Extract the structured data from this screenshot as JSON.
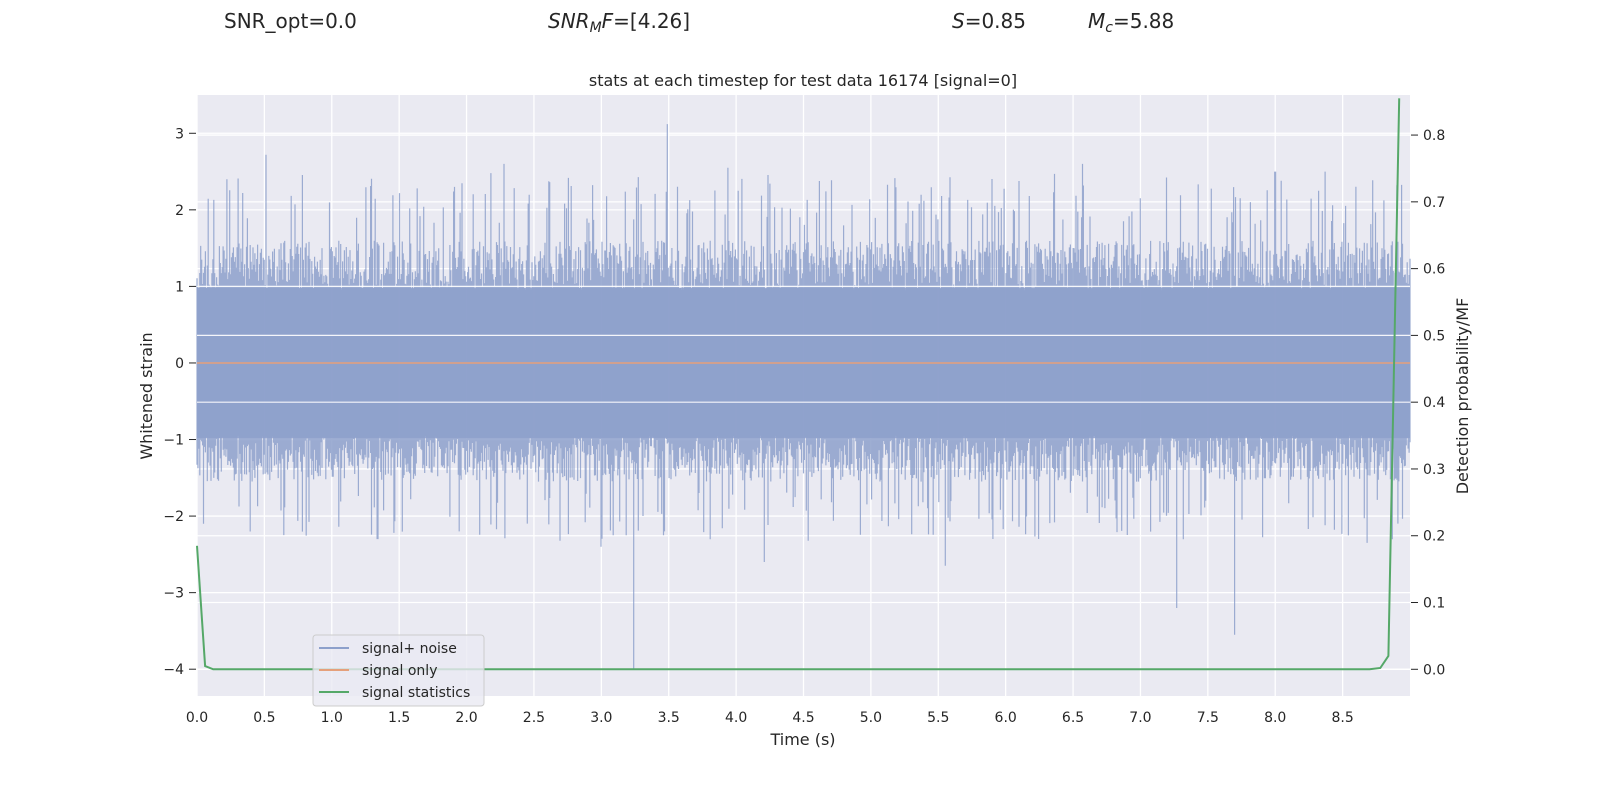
{
  "header": {
    "snr_opt": "SNR_opt=0.0",
    "snr_mf_prefix": "SNR",
    "snr_mf_sub": "M",
    "snr_mf_f": "F",
    "snr_mf_value": "=[4.26]",
    "s_label": "S",
    "s_value": "=0.85",
    "mc_label": "M",
    "mc_sub": "c",
    "mc_value": "=5.88"
  },
  "chart_data": {
    "type": "line",
    "title": "stats at each timestep for test data 16174 [signal=0]",
    "xlabel": "Time (s)",
    "ylabel": "Whitened strain",
    "y2label": "Detection probability/MF",
    "xlim": [
      0.0,
      9.0
    ],
    "ylim": [
      -4.35,
      3.5
    ],
    "y2lim": [
      -0.04,
      0.86
    ],
    "xticks": [
      "0.0",
      "0.5",
      "1.0",
      "1.5",
      "2.0",
      "2.5",
      "3.0",
      "3.5",
      "4.0",
      "4.5",
      "5.0",
      "5.5",
      "6.0",
      "6.5",
      "7.0",
      "7.5",
      "8.0",
      "8.5"
    ],
    "yticks": [
      "3",
      "2",
      "1",
      "0",
      "−1",
      "−2",
      "−3",
      "−4"
    ],
    "y2ticks": [
      "0.8",
      "0.7",
      "0.6",
      "0.5",
      "0.4",
      "0.3",
      "0.2",
      "0.1",
      "0.0"
    ],
    "grid": true,
    "legend_position": "lower left",
    "colors": {
      "noise": "#8da0cb",
      "signal": "#e5a07b",
      "stats": "#55a868",
      "background": "#eaeaf2",
      "grid": "#ffffff"
    },
    "series": [
      {
        "name": "signal+ noise",
        "axis": "left",
        "description_sampled": "noise envelope, positive/negative extremes",
        "notable_peaks": [
          {
            "x": 0.51,
            "y": 2.72
          },
          {
            "x": 1.91,
            "y": 2.3
          },
          {
            "x": 2.28,
            "y": 2.6
          },
          {
            "x": 3.49,
            "y": 3.12
          },
          {
            "x": 3.94,
            "y": 2.55
          },
          {
            "x": 6.57,
            "y": 2.6
          },
          {
            "x": 8.0,
            "y": 2.5
          },
          {
            "x": 8.37,
            "y": 2.5
          }
        ],
        "notable_troughs": [
          {
            "x": 0.05,
            "y": -2.1
          },
          {
            "x": 1.34,
            "y": -2.3
          },
          {
            "x": 3.0,
            "y": -2.4
          },
          {
            "x": 3.24,
            "y": -4.0
          },
          {
            "x": 4.21,
            "y": -2.6
          },
          {
            "x": 5.55,
            "y": -2.65
          },
          {
            "x": 7.27,
            "y": -3.2
          },
          {
            "x": 7.7,
            "y": -3.55
          },
          {
            "x": 8.68,
            "y": -2.35
          }
        ]
      },
      {
        "name": "signal only",
        "axis": "left",
        "x": [
          0.0,
          9.0
        ],
        "y": [
          0.0,
          0.0
        ]
      },
      {
        "name": "signal statistics",
        "axis": "right",
        "x": [
          0.0,
          0.06,
          0.12,
          0.5,
          1.0,
          2.0,
          3.0,
          4.0,
          5.0,
          6.0,
          7.0,
          8.0,
          8.5,
          8.7,
          8.78,
          8.84,
          8.92
        ],
        "y": [
          0.185,
          0.005,
          0.0,
          0.0,
          0.0,
          0.0,
          0.0,
          0.0,
          0.0,
          0.0,
          0.0,
          0.0,
          0.0,
          0.0,
          0.002,
          0.02,
          0.855
        ]
      }
    ],
    "legend": [
      "signal+ noise",
      "signal only",
      "signal statistics"
    ]
  }
}
